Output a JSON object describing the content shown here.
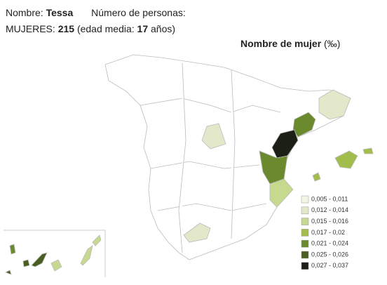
{
  "header": {
    "name_label": "Nombre:",
    "name": "Tessa",
    "count_label": "Número de personas:",
    "group": "MUJERES:",
    "count": 215,
    "age_label": "(edad media:",
    "age": 17,
    "age_unit": "años)"
  },
  "map": {
    "title": "Nombre de mujer",
    "unit": "(‰)",
    "legend": [
      {
        "label": "0,005 - 0,011",
        "color": "#f3f4e4"
      },
      {
        "label": "0,012 - 0,014",
        "color": "#e2e8c9"
      },
      {
        "label": "0,015 - 0,016",
        "color": "#c7d88f"
      },
      {
        "label": "0,017 - 0,02",
        "color": "#a2bd4c"
      },
      {
        "label": "0,021 - 0,024",
        "color": "#6b8a2e"
      },
      {
        "label": "0,025 - 0,026",
        "color": "#4a5e22"
      },
      {
        "label": "0,027 - 0,037",
        "color": "#1b1f15"
      }
    ]
  }
}
